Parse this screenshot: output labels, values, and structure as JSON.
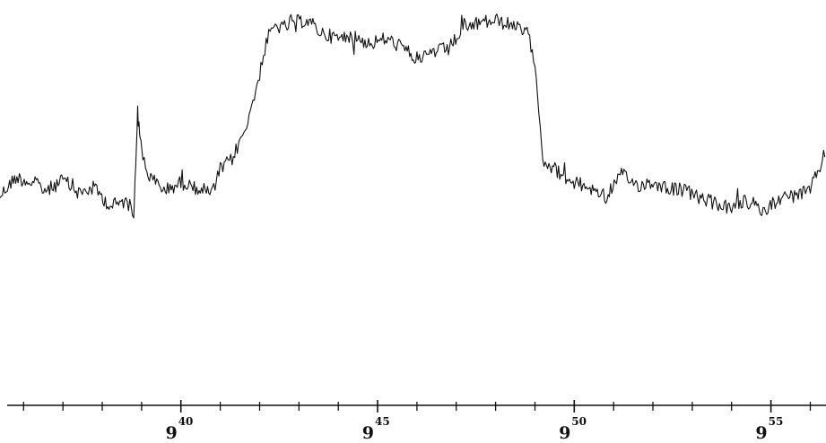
{
  "chart_data": {
    "type": "line",
    "title": "",
    "xlabel": "",
    "ylabel": "",
    "x_unit": "minutes past 9:00",
    "xlim": [
      35.4,
      56.4
    ],
    "ylim": [
      0,
      100
    ],
    "y_axis_shown": false,
    "grid": false,
    "line_color": "#111111",
    "major_ticks": [
      {
        "minute": 40,
        "hour": "9",
        "sup": "40"
      },
      {
        "minute": 45,
        "hour": "9",
        "sup": "45"
      },
      {
        "minute": 50,
        "hour": "9",
        "sup": "50"
      },
      {
        "minute": 55,
        "hour": "9",
        "sup": "55"
      }
    ],
    "minor_tick_step_minutes": 1,
    "series": [
      {
        "x": [
          35.4,
          35.8,
          36.2,
          36.6,
          37.0,
          37.4,
          37.8,
          38.2,
          38.6,
          38.8,
          38.9,
          39.0,
          39.2,
          39.6,
          40.0,
          40.4,
          40.8,
          41.0,
          41.3,
          41.6,
          41.9,
          42.2,
          42.4,
          42.6,
          42.8,
          43.2,
          43.6,
          44.0,
          44.4,
          44.8,
          45.2,
          45.6,
          46.0,
          46.4,
          46.8,
          47.2,
          47.6,
          48.0,
          48.4,
          48.8,
          49.0,
          49.2,
          49.6,
          50.0,
          50.4,
          50.8,
          51.2,
          51.6,
          52.0,
          52.4,
          52.8,
          53.2,
          53.6,
          54.0,
          54.4,
          54.8,
          55.2,
          55.6,
          56.0,
          56.4
        ],
        "y": [
          28,
          35,
          33,
          30,
          34,
          29,
          31,
          24,
          26,
          22,
          60,
          45,
          35,
          30,
          33,
          31,
          29,
          38,
          42,
          52,
          68,
          88,
          93,
          92,
          94,
          95,
          90,
          88,
          89,
          86,
          88,
          85,
          80,
          83,
          84,
          92,
          94,
          95,
          93,
          90,
          80,
          42,
          37,
          33,
          31,
          28,
          36,
          32,
          33,
          31,
          30,
          27,
          25,
          23,
          26,
          22,
          27,
          28,
          30,
          45
        ]
      }
    ]
  }
}
